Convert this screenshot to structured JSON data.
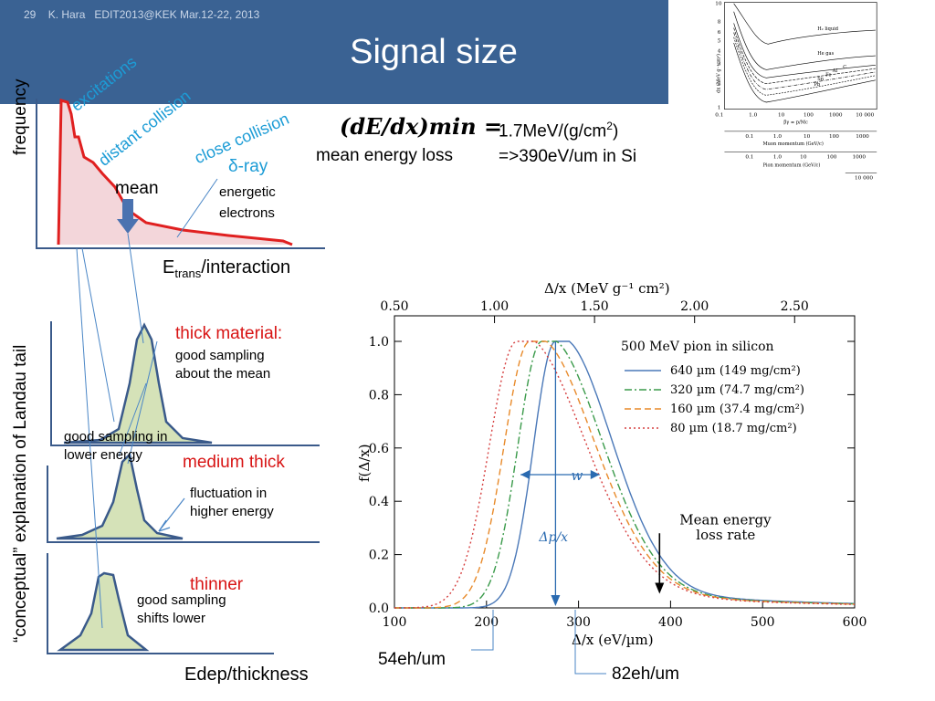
{
  "slide": {
    "page_number": "29",
    "author": "K. Hara",
    "event": "EDIT2013@KEK Mar.12-22, 2013",
    "title": "Signal size"
  },
  "left_diagram": {
    "y_label_top": "frequency",
    "y_label_bottom": "“conceptual” explanation of Landau tail",
    "label_excitations": "excitations",
    "label_distant": "distant collision",
    "label_close": "close collision",
    "label_delta": "δ-ray",
    "label_energetic": "energetic",
    "label_electrons": "electrons",
    "label_mean": "mean",
    "x_label_top_prefix": "E",
    "x_label_top_sub": "trans",
    "x_label_top_suffix": "/interaction",
    "thick_title": "thick material:",
    "thick_desc1": "good sampling",
    "thick_desc2": "about the mean",
    "lower_desc1": "good sampling in",
    "lower_desc2": "lower energy",
    "medium_title": "medium thick",
    "fluct_desc1": "fluctuation in",
    "fluct_desc2": "higher energy",
    "thinner_title": "thinner",
    "shift_desc1": "good sampling",
    "shift_desc2": "shifts lower",
    "x_label_bottom": "Edep/thickness"
  },
  "formula": {
    "lhs": "(dE/dx)min =",
    "caption": "mean energy loss",
    "rhs1_prefix": "1.7MeV/(g/cm",
    "rhs1_sup": "2",
    "rhs1_suffix": ")",
    "rhs2": "=>390eV/um in Si"
  },
  "annotations": {
    "label_54": "54eh/um",
    "label_82": "82eh/um"
  },
  "top_right_figure": {
    "y_ticks": [
      "10",
      "8",
      "6",
      "5",
      "4",
      "3",
      "2",
      "1"
    ],
    "y_label": "dx  (MeV g⁻¹cm²)",
    "curve_labels": [
      "H₂ liquid",
      "He gas",
      "C",
      "Al",
      "Fe",
      "Sn",
      "Pb"
    ],
    "axis1_ticks": [
      "0.1",
      "1.0",
      "10",
      "100",
      "1000",
      "10 000"
    ],
    "axis1_label": "βγ = p/Mc",
    "axis2_ticks": [
      "0.1",
      "1.0",
      "10",
      "100",
      "1000"
    ],
    "axis2_label": "Muon momentum (GeV/c)",
    "axis3_ticks": [
      "0.1",
      "1.0",
      "10",
      "100",
      "1000"
    ],
    "axis3_label": "Pion momentum (GeV/c)",
    "axis4_tick": "10 000"
  },
  "chart_data": {
    "type": "line",
    "legend_title": "500 MeV pion in silicon",
    "top_axis_label": "Δ/x  (MeV g⁻¹ cm²)",
    "top_ticks": [
      "0.50",
      "1.00",
      "1.50",
      "2.00",
      "2.50"
    ],
    "xlabel": "Δ/x  (eV/µm)",
    "ylabel": "f(Δ/x)",
    "xlim": [
      100,
      600
    ],
    "ylim": [
      0,
      1.0
    ],
    "x_ticks": [
      "100",
      "200",
      "300",
      "400",
      "500",
      "600"
    ],
    "y_ticks": [
      "0.0",
      "0.2",
      "0.4",
      "0.6",
      "0.8",
      "1.0"
    ],
    "series": [
      {
        "name": "640 µm (149 mg/cm²)",
        "color": "#4a78b8",
        "style": "solid",
        "peak": 275,
        "width_left": 24,
        "width_right": 58,
        "x": [
          180,
          205,
          220,
          235,
          250,
          262,
          275,
          290,
          310,
          340,
          380,
          420,
          480,
          540,
          600
        ],
        "values": [
          0.0,
          0.02,
          0.12,
          0.4,
          0.74,
          0.93,
          1.0,
          0.9,
          0.69,
          0.43,
          0.21,
          0.13,
          0.07,
          0.045,
          0.03
        ]
      },
      {
        "name": "320 µm (74.7 mg/cm²)",
        "color": "#3a9a4a",
        "style": "dashdot",
        "peak": 260,
        "width_left": 26,
        "width_right": 62,
        "x": [
          165,
          190,
          205,
          220,
          235,
          248,
          260,
          275,
          295,
          325,
          370,
          420,
          480,
          540,
          600
        ],
        "values": [
          0.0,
          0.02,
          0.12,
          0.4,
          0.74,
          0.93,
          1.0,
          0.9,
          0.69,
          0.44,
          0.21,
          0.12,
          0.07,
          0.045,
          0.03
        ]
      },
      {
        "name": "160 µm (37.4 mg/cm²)",
        "color": "#e88a2a",
        "style": "dashed",
        "peak": 247,
        "width_left": 28,
        "width_right": 66,
        "x": [
          150,
          175,
          190,
          205,
          220,
          235,
          247,
          262,
          283,
          315,
          360,
          420,
          480,
          540,
          600
        ],
        "values": [
          0.0,
          0.02,
          0.12,
          0.4,
          0.74,
          0.93,
          1.0,
          0.9,
          0.69,
          0.43,
          0.21,
          0.11,
          0.065,
          0.042,
          0.03
        ]
      },
      {
        "name": "80 µm (18.7 mg/cm²)",
        "color": "#d64040",
        "style": "dotted",
        "peak": 233,
        "width_left": 30,
        "width_right": 70,
        "x": [
          130,
          155,
          170,
          187,
          203,
          218,
          233,
          248,
          270,
          305,
          350,
          420,
          480,
          540,
          600
        ],
        "values": [
          0.0,
          0.02,
          0.12,
          0.4,
          0.74,
          0.93,
          1.0,
          0.9,
          0.69,
          0.42,
          0.2,
          0.1,
          0.06,
          0.04,
          0.028
        ]
      }
    ],
    "annotations": {
      "w_label": "w",
      "dp_label": "Δp/x",
      "mean_label_1": "Mean energy",
      "mean_label_2": "loss rate",
      "mean_x": 388
    }
  }
}
